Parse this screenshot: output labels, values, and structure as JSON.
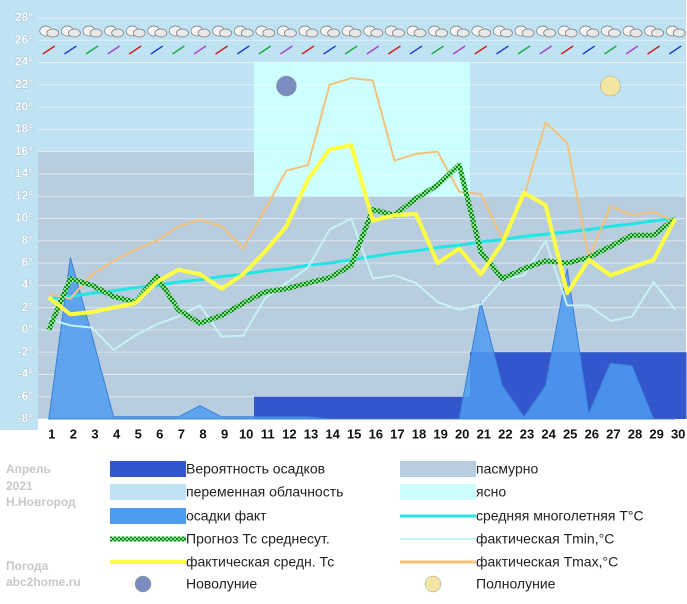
{
  "chart_data": {
    "type": "weather",
    "categories": [
      "1",
      "2",
      "3",
      "4",
      "5",
      "6",
      "7",
      "8",
      "9",
      "10",
      "11",
      "12",
      "13",
      "14",
      "15",
      "16",
      "17",
      "18",
      "19",
      "20",
      "21",
      "22",
      "23",
      "24",
      "25",
      "26",
      "27",
      "28",
      "29",
      "30"
    ],
    "weekends": [
      3,
      4,
      10,
      11,
      17,
      18,
      24,
      25
    ],
    "weekend_color": "#ee0000",
    "ylim": [
      -8,
      28
    ],
    "yticks": [
      {
        "value": -8,
        "label": "-8°"
      },
      {
        "value": -6,
        "label": "-6°"
      },
      {
        "value": -4,
        "label": "-4°"
      },
      {
        "value": -2,
        "label": "-2°"
      },
      {
        "value": 0,
        "label": "0°"
      },
      {
        "value": 2,
        "label": "2°"
      },
      {
        "value": 4,
        "label": "4°"
      },
      {
        "value": 6,
        "label": "6°"
      },
      {
        "value": 8,
        "label": "8°"
      },
      {
        "value": 10,
        "label": "10°"
      },
      {
        "value": 12,
        "label": "12°"
      },
      {
        "value": 14,
        "label": "14°"
      },
      {
        "value": 16,
        "label": "16°"
      },
      {
        "value": 18,
        "label": "18°"
      },
      {
        "value": 20,
        "label": "20°"
      },
      {
        "value": 22,
        "label": "22°"
      },
      {
        "value": 24,
        "label": "24°"
      },
      {
        "value": 26,
        "label": "26°"
      },
      {
        "value": 28,
        "label": "28°"
      }
    ],
    "grid": true,
    "sky": [
      {
        "name": "переменная облачность",
        "color": "#bfe3f3"
      },
      {
        "name": "пасмурно",
        "color": "#b8cddd"
      },
      {
        "name": "ясно",
        "color": "#ccffff"
      }
    ],
    "bars": {
      "name": "Вероятность осадков",
      "color": "#3356cc",
      "values": [
        null,
        null,
        null,
        null,
        null,
        null,
        null,
        null,
        null,
        null,
        -6,
        -6,
        -6,
        -6,
        -6,
        -6,
        -6,
        -6,
        -6,
        -6,
        -2,
        -2,
        -2,
        -2,
        -2,
        -2,
        -2,
        -2,
        -2,
        -2
      ]
    },
    "area": {
      "name": "осадки факт",
      "color": "#4d9bf0",
      "values": [
        -8,
        6.5,
        -0.5,
        -7.8,
        -7.8,
        -7.8,
        -7.8,
        -6.8,
        -7.8,
        -7.8,
        -7.8,
        -7.8,
        -7.8,
        -8,
        -8,
        -8,
        -8,
        -8,
        -8,
        -8,
        2.5,
        -5,
        -7.8,
        -5,
        5.5,
        -7.5,
        -3,
        -3.2,
        -8,
        -8
      ]
    },
    "series": [
      {
        "name": "средняя многолетняя T°C",
        "color": "#22e6e6",
        "width": 3,
        "values": [
          2.8,
          3.0,
          3.3,
          3.5,
          3.8,
          4.0,
          4.3,
          4.5,
          4.8,
          5.0,
          5.3,
          5.5,
          5.8,
          6.0,
          6.3,
          6.6,
          6.9,
          7.1,
          7.4,
          7.6,
          7.9,
          8.1,
          8.4,
          8.6,
          8.8,
          9.0,
          9.3,
          9.5,
          9.8,
          10.0
        ]
      },
      {
        "name": "фактическая Tmin,°C",
        "color": "#c6f2f6",
        "width": 2,
        "values": [
          1.0,
          0.4,
          0.2,
          -1.8,
          -0.5,
          0.5,
          1.2,
          2.2,
          -0.6,
          -0.5,
          2.8,
          4.2,
          5.6,
          9.0,
          10.0,
          4.6,
          4.9,
          4.2,
          2.5,
          1.8,
          2.3,
          4.5,
          4.9,
          8.0,
          2.2,
          2.2,
          0.8,
          1.2,
          4.3,
          1.8
        ]
      },
      {
        "name": "фактическая Tmax,°C",
        "color": "#f4c27a",
        "width": 2,
        "values": [
          3.2,
          2.8,
          5.0,
          6.2,
          7.2,
          8.0,
          9.3,
          9.9,
          9.3,
          7.3,
          10.8,
          14.3,
          14.8,
          22.0,
          22.6,
          22.4,
          15.2,
          15.8,
          16.0,
          12.4,
          12.2,
          8.2,
          12.0,
          18.6,
          16.8,
          6.4,
          11.1,
          10.3,
          10.6,
          9.7
        ]
      },
      {
        "name": "Прогноз Тс среднесут.",
        "color": "#0a8a1a",
        "width": 5,
        "pattern": true,
        "values": [
          0,
          4.6,
          4.0,
          3.0,
          2.5,
          4.8,
          1.8,
          0.6,
          1.3,
          2.4,
          3.4,
          3.7,
          4.2,
          4.7,
          5.8,
          10.8,
          10.3,
          11.8,
          13.0,
          14.8,
          7.0,
          4.6,
          5.5,
          6.2,
          6.0,
          6.5,
          7.5,
          8.5,
          8.5,
          10.0
        ]
      },
      {
        "name": "фактическая средн. Тс",
        "color": "#ffff44",
        "width": 4,
        "values": [
          2.9,
          1.4,
          1.6,
          2.0,
          2.4,
          4.3,
          5.4,
          5.0,
          3.7,
          5.0,
          7.0,
          9.3,
          13.5,
          16.2,
          16.6,
          9.8,
          10.3,
          10.4,
          6.0,
          7.3,
          5.0,
          7.8,
          12.3,
          11.2,
          3.3,
          6.3,
          4.9,
          5.6,
          6.3,
          10.0
        ]
      }
    ],
    "moons": [
      {
        "name": "Новолуние",
        "day": 12,
        "color": "#7a8cc0"
      },
      {
        "name": "Полнолуние",
        "day": 27,
        "color": "#f2e6a0"
      }
    ],
    "footer": {
      "month": "Апрель",
      "year": "2021",
      "city": "Н.Новгород",
      "brand": "Погода",
      "site": "abc2home.ru"
    }
  }
}
